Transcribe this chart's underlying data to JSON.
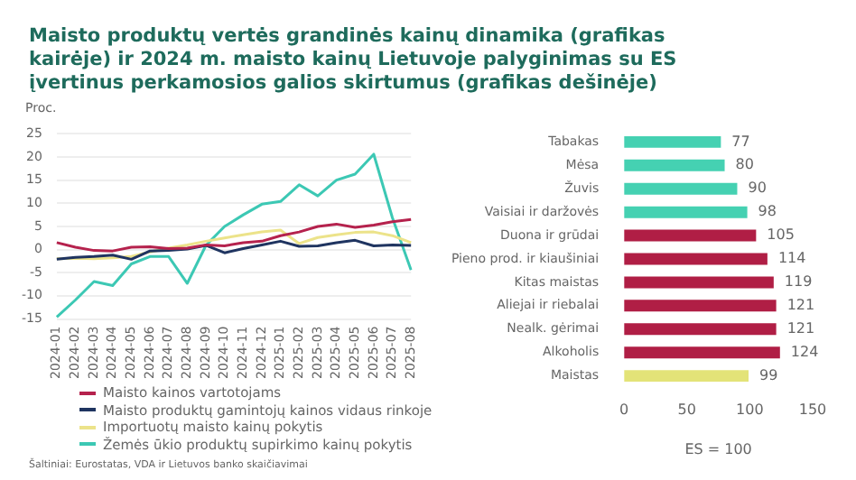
{
  "chart_data": [
    {
      "type": "line",
      "title": "Maisto produktų vertės grandinės kainų dinamika (grafikas kairėje) ir 2024 m. maisto kainų Lietuvoje palyginimas su ES įvertinus perkamosios galios skirtumus (grafikas dešinėje)",
      "ylabel": "Proc.",
      "categories": [
        "2024-01",
        "2024-02",
        "2024-03",
        "2024-04",
        "2024-05",
        "2024-06",
        "2024-07",
        "2024-08",
        "2024-09",
        "2024-10",
        "2024-11",
        "2024-12",
        "2025-01",
        "2025-02",
        "2025-03",
        "2025-04",
        "2025-05",
        "2025-06",
        "2025-07",
        "2025-08"
      ],
      "series": [
        {
          "name": "Maisto kainos vartotojams",
          "color": "#b5224d",
          "values": [
            1.5,
            0.5,
            -0.2,
            -0.3,
            0.5,
            0.6,
            0.2,
            0.3,
            1.0,
            0.8,
            1.5,
            1.8,
            3.0,
            3.8,
            5.0,
            5.5,
            4.8,
            5.3,
            6.0,
            6.5
          ]
        },
        {
          "name": "Maisto produktų gamintojų kainos vidaus rinkoje",
          "color": "#1f3460",
          "values": [
            -2.1,
            -1.7,
            -1.5,
            -1.2,
            -2.1,
            -0.3,
            -0.2,
            0.1,
            0.9,
            -0.7,
            0.2,
            1.0,
            1.8,
            0.7,
            0.8,
            1.5,
            2.0,
            0.8,
            1.0,
            0.9
          ]
        },
        {
          "name": "Importuotų maisto kainų pokytis",
          "color": "#ece38a",
          "values": [
            -2.0,
            -1.9,
            -2.0,
            -1.8,
            -1.5,
            -0.5,
            0.3,
            1.0,
            1.8,
            2.5,
            3.2,
            3.8,
            4.2,
            1.3,
            2.6,
            3.2,
            3.7,
            3.8,
            3.0,
            1.5
          ]
        },
        {
          "name": "Žemės ūkio produktų supirkimo kainų pokytis",
          "color": "#3cc8b4",
          "values": [
            -14.6,
            -10.9,
            -6.9,
            -7.8,
            -3.1,
            -1.5,
            -1.5,
            -7.3,
            0.9,
            5.0,
            7.5,
            9.8,
            10.4,
            14.0,
            11.6,
            15.0,
            16.3,
            20.6,
            6.9,
            -4.4
          ]
        }
      ],
      "ylim": [
        -15,
        25
      ],
      "yticks": [
        -15,
        -10,
        -5,
        0,
        5,
        10,
        15,
        20,
        25
      ],
      "grid": "y",
      "legend": "bottom",
      "marker": "none",
      "line_style": "solid",
      "annotations": [
        "Šaltiniai: Eurostatas, VDA ir Lietuvos banko skaičiavimai"
      ]
    },
    {
      "type": "bar",
      "orientation": "horizontal",
      "xlabel": "ES = 100",
      "categories": [
        "Tabakas",
        "Mėsa",
        "Žuvis",
        "Vaisiai ir daržovės",
        "Duona ir grūdai",
        "Pieno prod. ir kiaušiniai",
        "Kitas maistas",
        "Aliejai ir riebalai",
        "Nealk. gėrimai",
        "Alkoholis",
        "Maistas"
      ],
      "values": [
        77,
        80,
        90,
        98,
        105,
        114,
        119,
        121,
        121,
        124,
        99
      ],
      "colors": [
        "#45d1b2",
        "#45d1b2",
        "#45d1b2",
        "#45d1b2",
        "#b01e45",
        "#b01e45",
        "#b01e45",
        "#b01e45",
        "#b01e45",
        "#b01e45",
        "#e3e378"
      ],
      "xlim": [
        0,
        150
      ],
      "xticks": [
        0,
        50,
        100,
        150
      ],
      "grid": false,
      "legend": false,
      "data_labels": true
    }
  ]
}
